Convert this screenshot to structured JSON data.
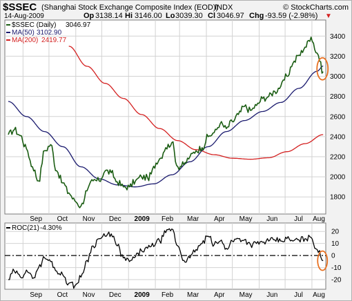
{
  "header": {
    "symbol": "$SSEC",
    "name": "(Shanghai Stock Exchange Composite Index (EOD))",
    "exchange": "INDX",
    "copyright": "© StockCharts.com",
    "date": "14-Aug-2009",
    "open_label": "Op",
    "open": "3138.14",
    "high_label": "Hi",
    "high": "3146.00",
    "low_label": "Lo",
    "low": "3039.30",
    "close_label": "Cl",
    "close": "3046.97",
    "change_label": "Chg",
    "change": "-93.59 (-2.98%)",
    "change_arrow": "▼"
  },
  "colors": {
    "price": "#1a5c12",
    "ma50": "#1a1a6e",
    "ma200": "#d42020",
    "roc": "#000000",
    "highlight": "#e87020",
    "grid": "#d2d2d2",
    "panel_bg": "#ffffff",
    "page_bg": "#f2f2f2"
  },
  "chart_data": [
    {
      "type": "line",
      "legend": [
        {
          "name": "$SSEC (Daily)",
          "value": "3046.97"
        },
        {
          "name": "MA(50)",
          "value": "3102.90"
        },
        {
          "name": "MA(200)",
          "value": "2419.77"
        }
      ],
      "ylim": [
        1630,
        3560
      ],
      "yticks": [
        1800,
        2000,
        2200,
        2400,
        2600,
        2800,
        3000,
        3200,
        3400
      ],
      "x_month_labels": [
        "Sep",
        "Oct",
        "Nov",
        "Dec",
        "2009",
        "Feb",
        "Mar",
        "Apr",
        "May",
        "Jun",
        "Jul",
        "Aug"
      ],
      "series": [
        {
          "name": "$SSEC (Daily)",
          "x": [
            "2008-08-15",
            "2008-08-22",
            "2008-08-29",
            "2008-09-05",
            "2008-09-12",
            "2008-09-19",
            "2008-09-26",
            "2008-10-03",
            "2008-10-10",
            "2008-10-17",
            "2008-10-24",
            "2008-10-31",
            "2008-11-07",
            "2008-11-14",
            "2008-11-21",
            "2008-11-28",
            "2008-12-05",
            "2008-12-12",
            "2008-12-19",
            "2008-12-26",
            "2009-01-02",
            "2009-01-09",
            "2009-01-16",
            "2009-01-23",
            "2009-02-06",
            "2009-02-13",
            "2009-02-20",
            "2009-02-27",
            "2009-03-06",
            "2009-03-13",
            "2009-03-20",
            "2009-03-27",
            "2009-04-03",
            "2009-04-10",
            "2009-04-17",
            "2009-04-24",
            "2009-05-01",
            "2009-05-08",
            "2009-05-15",
            "2009-05-22",
            "2009-05-29",
            "2009-06-05",
            "2009-06-12",
            "2009-06-19",
            "2009-06-26",
            "2009-07-03",
            "2009-07-10",
            "2009-07-17",
            "2009-07-24",
            "2009-07-31",
            "2009-08-07",
            "2009-08-14"
          ],
          "values": [
            2420,
            2470,
            2410,
            2280,
            2100,
            1960,
            2260,
            2320,
            2060,
            1940,
            1840,
            1760,
            1710,
            1860,
            1960,
            1960,
            2060,
            2040,
            1950,
            1900,
            1900,
            1960,
            2000,
            1990,
            2180,
            2290,
            2340,
            2100,
            2120,
            2200,
            2260,
            2290,
            2400,
            2440,
            2530,
            2480,
            2550,
            2620,
            2700,
            2660,
            2710,
            2780,
            2800,
            2850,
            2900,
            3000,
            3130,
            3210,
            3290,
            3390,
            3230,
            3047
          ]
        },
        {
          "name": "MA(50)",
          "x": [
            "2008-08-15",
            "2008-09-05",
            "2008-09-26",
            "2008-10-17",
            "2008-11-07",
            "2008-11-28",
            "2008-12-19",
            "2009-01-09",
            "2009-01-30",
            "2009-02-20",
            "2009-03-13",
            "2009-04-03",
            "2009-04-24",
            "2009-05-15",
            "2009-06-05",
            "2009-06-26",
            "2009-07-17",
            "2009-08-07",
            "2009-08-14"
          ],
          "values": [
            2750,
            2600,
            2450,
            2300,
            2100,
            1980,
            1920,
            1900,
            1930,
            2020,
            2150,
            2300,
            2450,
            2560,
            2650,
            2740,
            2880,
            3050,
            3103
          ]
        },
        {
          "name": "MA(200)",
          "x": [
            "2008-10-24",
            "2008-11-14",
            "2008-12-05",
            "2008-12-26",
            "2009-01-16",
            "2009-02-06",
            "2009-02-27",
            "2009-03-20",
            "2009-04-10",
            "2009-05-01",
            "2009-05-22",
            "2009-06-12",
            "2009-07-03",
            "2009-07-24",
            "2009-08-14"
          ],
          "values": [
            3300,
            3100,
            2930,
            2780,
            2620,
            2480,
            2360,
            2270,
            2220,
            2185,
            2175,
            2190,
            2250,
            2330,
            2420
          ]
        }
      ]
    },
    {
      "type": "line",
      "legend": [
        {
          "name": "ROC(21)",
          "value": "-4.30%"
        }
      ],
      "ylim": [
        -28,
        27
      ],
      "yticks": [
        -20,
        -10,
        0,
        10,
        20
      ],
      "x_month_labels": [
        "Sep",
        "Oct",
        "Nov",
        "Dec",
        "2009",
        "Feb",
        "Mar",
        "Apr",
        "May",
        "Jun",
        "Jul",
        "Aug"
      ],
      "series": [
        {
          "name": "ROC(21)",
          "x": [
            "2008-08-15",
            "2008-08-22",
            "2008-08-29",
            "2008-09-05",
            "2008-09-12",
            "2008-09-19",
            "2008-09-26",
            "2008-10-03",
            "2008-10-10",
            "2008-10-17",
            "2008-10-24",
            "2008-10-31",
            "2008-11-07",
            "2008-11-14",
            "2008-11-21",
            "2008-11-28",
            "2008-12-05",
            "2008-12-12",
            "2008-12-19",
            "2008-12-26",
            "2009-01-02",
            "2009-01-09",
            "2009-01-16",
            "2009-01-23",
            "2009-02-06",
            "2009-02-13",
            "2009-02-20",
            "2009-02-27",
            "2009-03-06",
            "2009-03-13",
            "2009-03-20",
            "2009-03-27",
            "2009-04-03",
            "2009-04-10",
            "2009-04-17",
            "2009-04-24",
            "2009-05-01",
            "2009-05-08",
            "2009-05-15",
            "2009-05-22",
            "2009-05-29",
            "2009-06-05",
            "2009-06-12",
            "2009-06-19",
            "2009-06-26",
            "2009-07-03",
            "2009-07-10",
            "2009-07-17",
            "2009-07-24",
            "2009-07-31",
            "2009-08-07",
            "2009-08-14"
          ],
          "values": [
            -20,
            -13,
            -18,
            -12,
            -19,
            -10,
            -2,
            -5,
            -13,
            -16,
            -23,
            -25,
            -18,
            -4,
            8,
            14,
            16,
            18,
            8,
            -2,
            -5,
            -1,
            4,
            6,
            12,
            19,
            22,
            8,
            -4,
            -2,
            5,
            10,
            16,
            9,
            12,
            6,
            12,
            14,
            13,
            9,
            10,
            11,
            12,
            13,
            12,
            14,
            12,
            13,
            14,
            15,
            5,
            -4.3
          ]
        }
      ]
    }
  ]
}
